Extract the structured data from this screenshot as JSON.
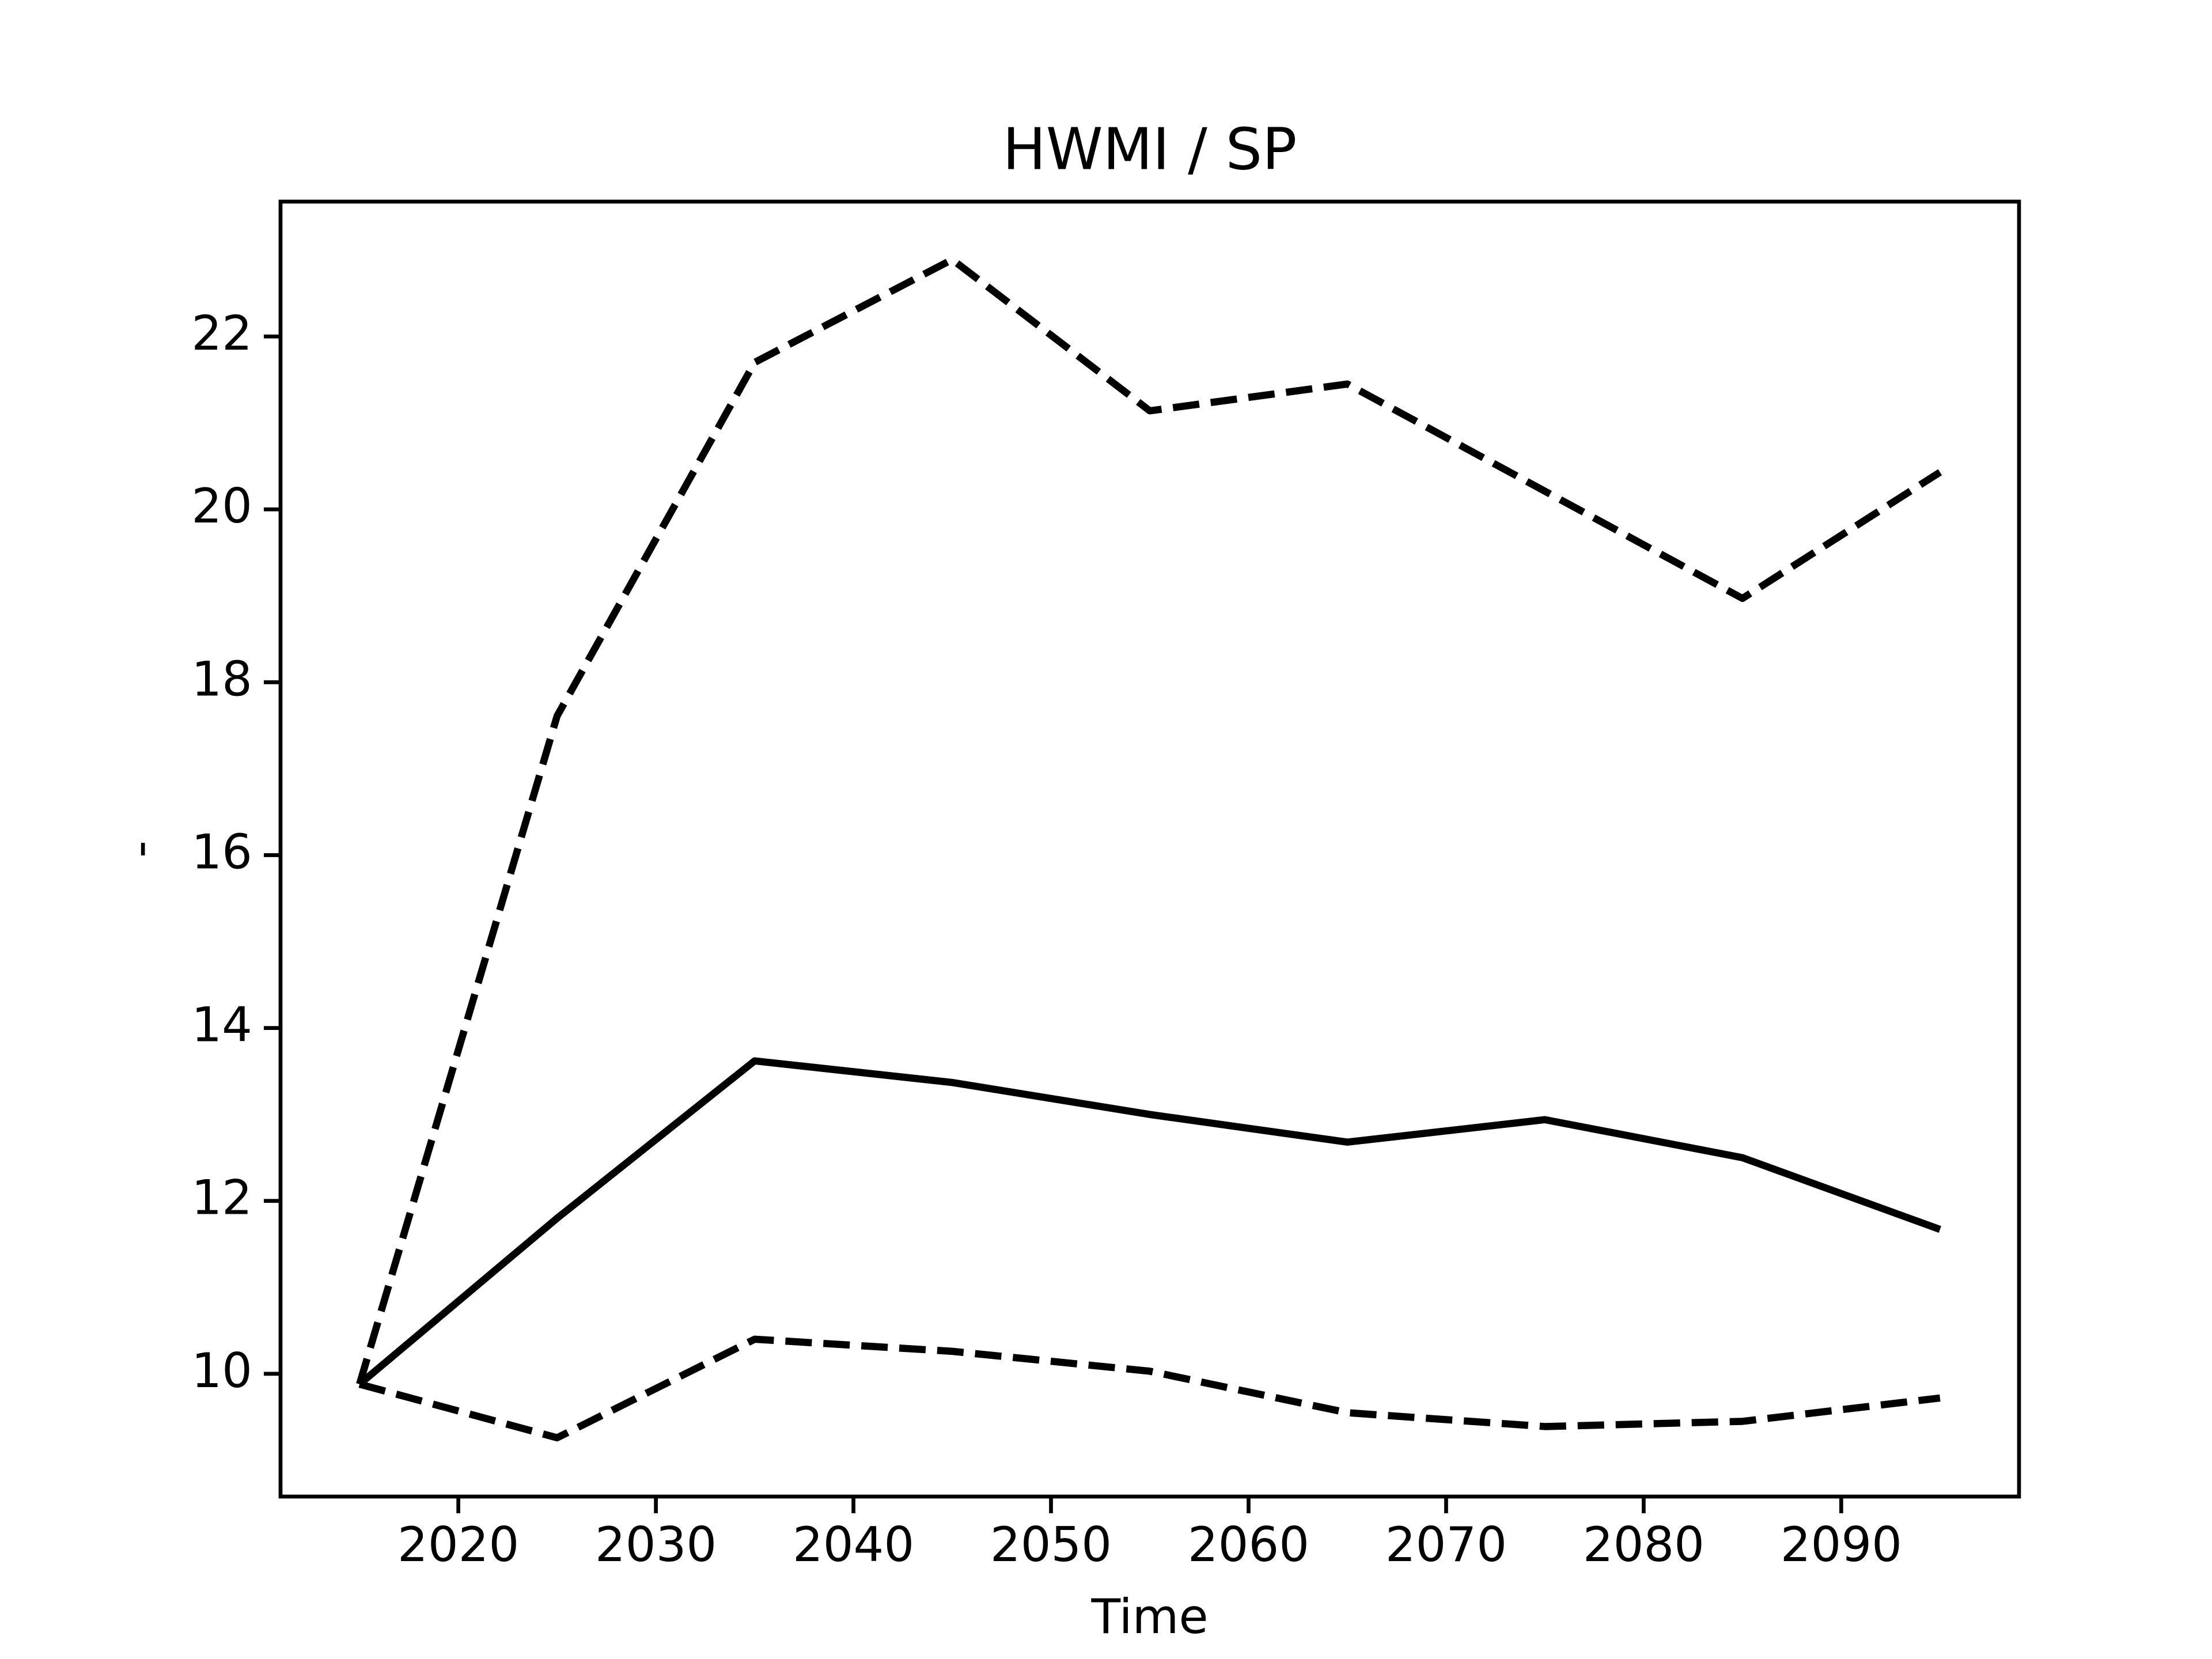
{
  "chart_data": {
    "type": "line",
    "title": "HWMI / SP",
    "x_label": "Time",
    "y_label": "-",
    "x": [
      2015,
      2025,
      2035,
      2045,
      2055,
      2065,
      2075,
      2085,
      2095
    ],
    "series": [
      {
        "color": "#000000",
        "linestyle": "solid",
        "values": [
          9.88,
          11.8,
          13.62,
          13.37,
          13.0,
          12.68,
          12.94,
          12.5,
          11.67
        ]
      },
      {
        "color": "#000000",
        "linestyle": "dashed",
        "values": [
          9.88,
          17.61,
          21.7,
          22.89,
          21.14,
          21.45,
          20.21,
          18.97,
          20.43
        ]
      },
      {
        "color": "#000000",
        "linestyle": "dashed",
        "values": [
          9.88,
          9.26,
          10.4,
          10.26,
          10.03,
          9.55,
          9.39,
          9.45,
          9.72
        ]
      }
    ],
    "xlim": [
      2011,
      2099
    ],
    "ylim": [
      8.58,
      23.56
    ],
    "xticks": [
      2020,
      2030,
      2040,
      2050,
      2060,
      2070,
      2080,
      2090
    ],
    "yticks": [
      10,
      12,
      14,
      16,
      18,
      20,
      22
    ],
    "grid": false
  }
}
